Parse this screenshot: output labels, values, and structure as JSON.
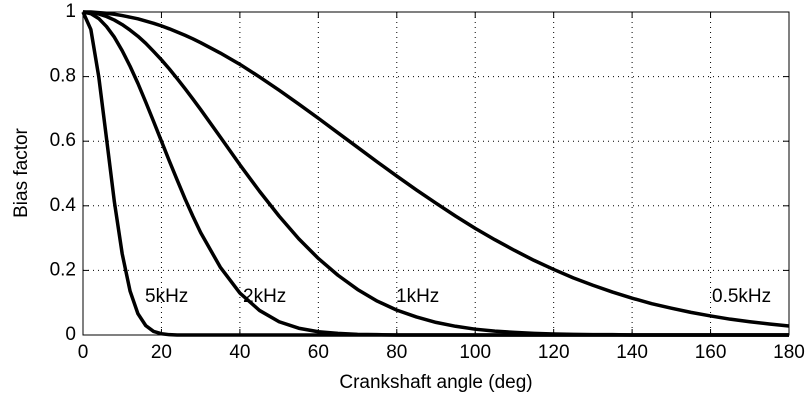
{
  "chart_data": {
    "type": "line",
    "xlabel": "Crankshaft angle (deg)",
    "ylabel": "Bias factor",
    "x": [
      0,
      2,
      4,
      6,
      8,
      10,
      12,
      14,
      16,
      18,
      20,
      22,
      24,
      26,
      28,
      30,
      35,
      40,
      45,
      50,
      55,
      60,
      65,
      70,
      75,
      80,
      85,
      90,
      95,
      100,
      105,
      110,
      115,
      120,
      125,
      130,
      135,
      140,
      145,
      150,
      155,
      160,
      165,
      170,
      175,
      180
    ],
    "series": [
      {
        "name": "5kHz",
        "color": "#000000",
        "values": [
          1,
          0.946,
          0.801,
          0.608,
          0.412,
          0.251,
          0.136,
          0.066,
          0.029,
          0.011,
          0.004,
          0.001,
          0,
          0,
          0,
          0,
          0,
          0,
          0,
          0,
          0,
          0,
          0,
          0,
          0,
          0,
          0,
          0,
          0,
          0,
          0,
          0,
          0,
          0,
          0,
          0,
          0,
          0,
          0,
          0,
          0,
          0,
          0,
          0,
          0,
          0
        ]
      },
      {
        "name": "2kHz",
        "color": "#000000",
        "values": [
          1,
          0.995,
          0.98,
          0.955,
          0.922,
          0.88,
          0.832,
          0.779,
          0.721,
          0.661,
          0.6,
          0.539,
          0.48,
          0.422,
          0.368,
          0.317,
          0.21,
          0.13,
          0.076,
          0.041,
          0.021,
          0.01,
          0.005,
          0.002,
          0.001,
          0,
          0,
          0,
          0,
          0,
          0,
          0,
          0,
          0,
          0,
          0,
          0,
          0,
          0,
          0,
          0,
          0,
          0,
          0,
          0,
          0
        ]
      },
      {
        "name": "1kHz",
        "color": "#000000",
        "values": [
          1,
          0.998,
          0.994,
          0.986,
          0.975,
          0.961,
          0.944,
          0.925,
          0.903,
          0.878,
          0.852,
          0.824,
          0.794,
          0.763,
          0.731,
          0.698,
          0.613,
          0.527,
          0.445,
          0.368,
          0.298,
          0.237,
          0.185,
          0.141,
          0.105,
          0.077,
          0.056,
          0.039,
          0.027,
          0.018,
          0.012,
          0.008,
          0.005,
          0.003,
          0.002,
          0.001,
          0.001,
          0,
          0,
          0,
          0,
          0,
          0,
          0,
          0,
          0
        ]
      },
      {
        "name": "0.5kHz",
        "color": "#000000",
        "values": [
          1,
          1,
          0.998,
          0.996,
          0.993,
          0.989,
          0.984,
          0.979,
          0.972,
          0.965,
          0.957,
          0.948,
          0.938,
          0.928,
          0.917,
          0.905,
          0.873,
          0.838,
          0.799,
          0.758,
          0.715,
          0.671,
          0.626,
          0.581,
          0.536,
          0.492,
          0.449,
          0.408,
          0.368,
          0.33,
          0.295,
          0.262,
          0.231,
          0.203,
          0.177,
          0.154,
          0.133,
          0.114,
          0.097,
          0.083,
          0.07,
          0.059,
          0.049,
          0.041,
          0.034,
          0.028
        ]
      }
    ],
    "xlim": [
      0,
      180
    ],
    "xticks": [
      0,
      20,
      40,
      60,
      80,
      100,
      120,
      140,
      160,
      180
    ],
    "ylim": [
      0,
      1
    ],
    "yticks": [
      0,
      0.2,
      0.4,
      0.6,
      0.8,
      1
    ],
    "grid": true
  }
}
